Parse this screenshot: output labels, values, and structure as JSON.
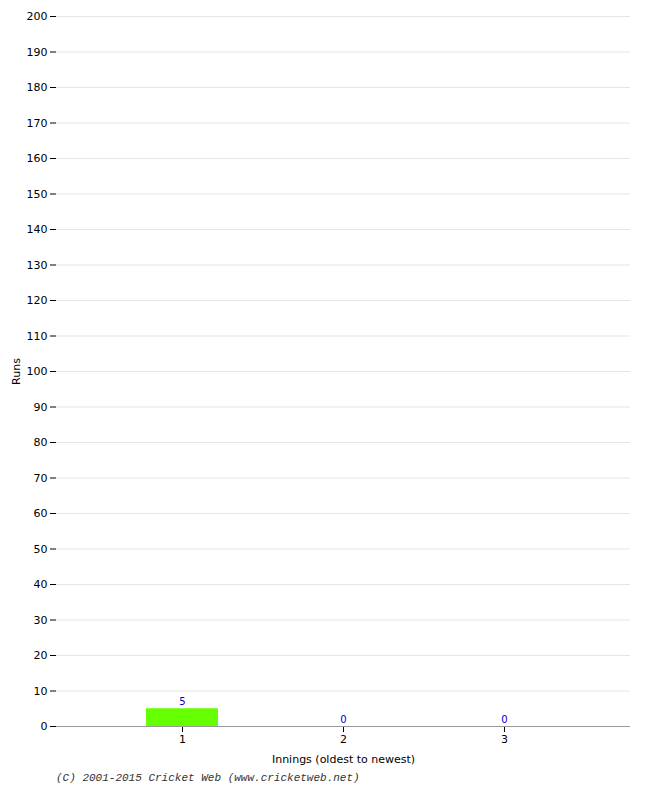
{
  "chart_data": {
    "type": "bar",
    "xlabel": "Innings (oldest to newest)",
    "ylabel": "Runs",
    "categories": [
      1,
      2,
      3
    ],
    "values": [
      5,
      0,
      0
    ],
    "color": "#66ff00",
    "ylim": [
      0,
      200
    ],
    "yticks": [
      0,
      10,
      20,
      30,
      40,
      50,
      60,
      70,
      80,
      90,
      100,
      110,
      120,
      130,
      140,
      150,
      160,
      170,
      180,
      190,
      200
    ],
    "grid": true,
    "data_labels": true,
    "caption": "(C) 2001-2015 Cricket Web (www.cricketweb.net)"
  }
}
